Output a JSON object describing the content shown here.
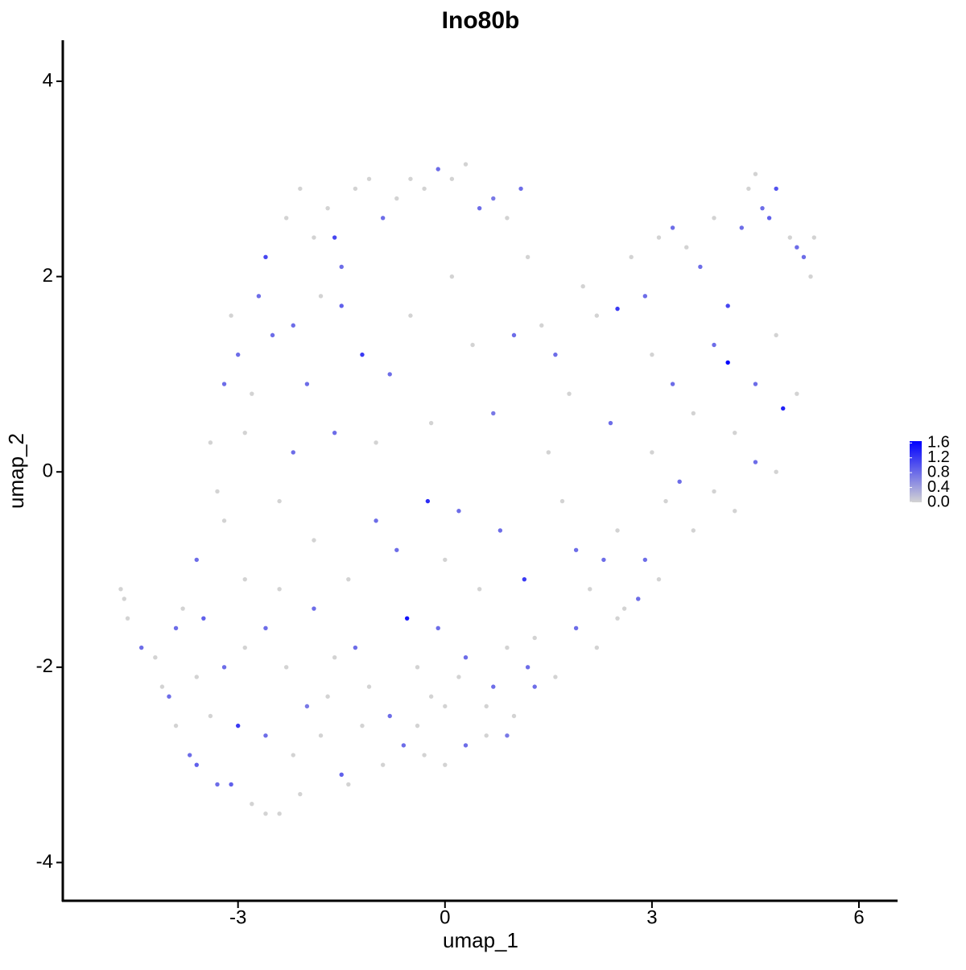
{
  "chart_data": {
    "type": "scatter",
    "title": "Ino80b",
    "x_label": "umap_1",
    "y_label": "umap_2",
    "xlim": [
      -5.54,
      6.56
    ],
    "ylim": [
      -4.4,
      4.42
    ],
    "xticks": [
      -3,
      0,
      3,
      6
    ],
    "yticks": [
      -4,
      -2,
      0,
      2,
      4
    ],
    "grid": false,
    "low_color": "#d3d3d3",
    "high_color": "#0000ff",
    "colorlim": [
      0,
      1.65
    ],
    "color_ticks": [
      {
        "value": 0,
        "label": "0.0"
      },
      {
        "value": 0.4,
        "label": "0.4"
      },
      {
        "value": 0.8,
        "label": "0.8"
      },
      {
        "value": 1.2,
        "label": "1.2"
      },
      {
        "value": 1.6,
        "label": "1.6"
      }
    ],
    "series": [
      {
        "x": [
          -4.7,
          -4.65,
          -4.6,
          -4.4,
          -4.1,
          -4.0,
          -3.9,
          -3.7,
          -3.6,
          -3.3,
          -3.1,
          -2.8,
          -2.6,
          -2.4,
          -2.1,
          -1.5,
          -1.4,
          -3.0,
          -3.8,
          -3.5,
          -3.6,
          -3.2,
          -2.9,
          -2.6,
          -2.3,
          -2.0,
          -1.8,
          -1.6,
          -1.2,
          -0.9,
          -0.6,
          -0.3,
          0.0,
          0.3,
          0.6,
          0.9,
          1.0,
          0.7,
          0.2,
          -0.2,
          -3.4,
          -3.3,
          -3.2,
          -3.1,
          -3.0,
          -2.9,
          -2.8,
          -2.7,
          -2.6,
          -2.5,
          -2.3,
          -2.1,
          -1.9,
          -1.7,
          -1.6,
          -1.5,
          -1.3,
          -1.1,
          -0.9,
          -0.7,
          -0.5,
          -0.3,
          -0.1,
          0.1,
          0.3,
          0.5,
          0.7,
          0.9,
          1.1,
          1.2,
          -2.2,
          -2.0,
          -1.8,
          -1.5,
          -1.2,
          -1.0,
          -0.8,
          -0.5,
          -0.2,
          0.1,
          0.4,
          0.7,
          1.0,
          -2.4,
          -2.2,
          -1.9,
          -1.6,
          -1.4,
          -1.0,
          -0.7,
          -0.55,
          -0.25,
          0.0,
          0.2,
          0.5,
          0.8,
          1.15,
          1.3,
          -0.4,
          -0.1,
          1.4,
          1.6,
          1.8,
          2.0,
          2.2,
          2.4,
          1.5,
          1.7,
          1.9,
          2.1,
          2.3,
          2.5,
          2.6,
          2.8,
          1.3,
          1.6,
          1.9,
          2.2,
          2.5,
          2.8,
          2.5,
          2.7,
          2.9,
          3.1,
          3.3,
          3.5,
          3.7,
          3.9,
          4.1,
          4.3,
          4.4,
          4.5,
          4.6,
          4.7,
          4.8,
          5.0,
          5.1,
          5.2,
          5.3,
          5.35,
          4.1,
          4.9,
          3.0,
          3.3,
          3.6,
          3.9,
          4.2,
          4.5,
          4.8,
          5.1,
          3.0,
          3.2,
          3.4,
          3.6,
          3.9,
          4.2,
          4.5,
          4.8,
          2.9,
          3.1,
          -4.2,
          -3.9,
          -3.6,
          -3.4,
          -3.2,
          -2.9,
          -2.6,
          -2.4,
          -2.2,
          -1.9,
          -1.7,
          -1.3,
          -1.1,
          -0.8,
          -0.4,
          0.0,
          0.3,
          0.6,
          0.9,
          1.2
        ],
        "y": [
          -1.2,
          -1.3,
          -1.5,
          -1.8,
          -2.2,
          -2.3,
          -2.6,
          -2.9,
          -3.0,
          -3.2,
          -3.2,
          -3.4,
          -3.5,
          -3.5,
          -3.3,
          -3.1,
          -3.2,
          -2.6,
          -1.4,
          -1.5,
          -0.9,
          -0.5,
          -1.1,
          -1.6,
          -2.0,
          -2.4,
          -2.7,
          -1.9,
          -2.6,
          -3.0,
          -2.8,
          -2.9,
          -3.0,
          -2.8,
          -2.7,
          -2.7,
          -2.5,
          -2.2,
          -2.1,
          -2.3,
          0.3,
          -0.2,
          0.9,
          1.6,
          1.2,
          0.4,
          0.8,
          1.8,
          2.2,
          1.4,
          2.6,
          2.9,
          2.4,
          2.7,
          2.4,
          2.1,
          2.9,
          3.0,
          2.6,
          2.8,
          3.0,
          2.9,
          3.1,
          3.0,
          3.15,
          2.7,
          2.8,
          2.6,
          2.9,
          2.2,
          1.5,
          0.9,
          1.8,
          1.7,
          1.2,
          0.3,
          1.0,
          1.6,
          0.5,
          2.0,
          1.3,
          0.6,
          1.4,
          -0.3,
          0.2,
          -0.7,
          0.4,
          -1.1,
          -0.5,
          -0.8,
          -1.5,
          -0.3,
          -0.9,
          -0.4,
          -1.2,
          -0.6,
          -1.1,
          -1.7,
          -2.0,
          -1.6,
          1.5,
          1.2,
          0.8,
          1.9,
          1.6,
          0.5,
          0.2,
          -0.3,
          -0.8,
          -1.2,
          -0.9,
          -0.6,
          -1.4,
          -1.3,
          -2.2,
          -2.1,
          -1.6,
          -1.8,
          -1.5,
          -1.3,
          1.67,
          2.2,
          1.8,
          2.4,
          2.5,
          2.3,
          2.1,
          2.6,
          1.7,
          2.5,
          2.9,
          3.05,
          2.7,
          2.6,
          2.9,
          2.4,
          2.3,
          2.2,
          2.0,
          2.4,
          1.12,
          0.65,
          1.2,
          0.9,
          0.6,
          1.3,
          0.4,
          0.9,
          1.4,
          0.8,
          0.2,
          -0.3,
          -0.1,
          -0.6,
          -0.2,
          -0.4,
          0.1,
          0.0,
          -0.9,
          -1.1,
          -1.9,
          -1.6,
          -2.1,
          -2.5,
          -2.0,
          -1.8,
          -2.7,
          -1.2,
          -2.9,
          -1.4,
          -2.3,
          -1.8,
          -2.2,
          -2.5,
          -2.6,
          -2.4,
          -1.9,
          -2.4,
          -1.8,
          -2.0
        ],
        "values": [
          0,
          0,
          0,
          0.8,
          0,
          0.8,
          0,
          0.8,
          0.9,
          0.8,
          0.9,
          0,
          0,
          0,
          0,
          0.9,
          0,
          1.2,
          0,
          0.9,
          0.8,
          0,
          0,
          0.8,
          0,
          0.7,
          0,
          0,
          0,
          0,
          0.8,
          0,
          0,
          0.8,
          0,
          0.7,
          0,
          0.8,
          0,
          0,
          0,
          0,
          0.8,
          0,
          0.8,
          0,
          0,
          0.8,
          1.1,
          0.8,
          0,
          0,
          0,
          0,
          1.1,
          0.8,
          0,
          0,
          0.8,
          0,
          0,
          0,
          0.8,
          0,
          0,
          0.8,
          0.7,
          0,
          0.8,
          0,
          0.8,
          0.8,
          0,
          0.9,
          1.2,
          0,
          0.8,
          0,
          0,
          0,
          0,
          0.7,
          0.8,
          0,
          0.8,
          0,
          0.8,
          0,
          0.8,
          0.8,
          1.5,
          1.3,
          0,
          0.8,
          0,
          0.8,
          1.2,
          0,
          0,
          0.8,
          0,
          0.8,
          0,
          0,
          0,
          0.8,
          0,
          0,
          0.8,
          0,
          0.8,
          0,
          0,
          0,
          0.8,
          0,
          0.8,
          0,
          0,
          0.8,
          1.2,
          0,
          0.8,
          0,
          0.8,
          0,
          0.8,
          0,
          1.1,
          0.8,
          0,
          0,
          0.8,
          0.9,
          1.0,
          0,
          0.8,
          0.8,
          0,
          0,
          1.6,
          1.4,
          0,
          0.8,
          0,
          0.8,
          0,
          0.8,
          0,
          0,
          0,
          0,
          0.8,
          0,
          0,
          0,
          0.8,
          0,
          0.8,
          0,
          0,
          0.8,
          0,
          0,
          0.8,
          0,
          0.8,
          0,
          0,
          0.8,
          0,
          0.8,
          0,
          0.8,
          0,
          0,
          0.8,
          0,
          0,
          0.8
        ]
      }
    ]
  }
}
